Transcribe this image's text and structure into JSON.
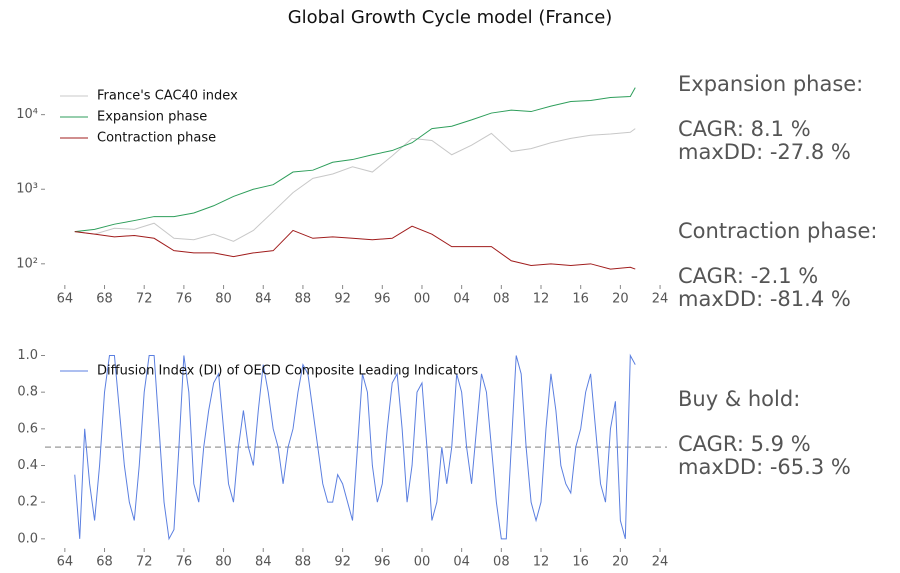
{
  "title": "Global Growth Cycle model (France)",
  "chart_data": [
    {
      "type": "line",
      "log_y": true,
      "legend": "upper left",
      "xlim": [
        1962,
        2024.7
      ],
      "ylim": [
        52,
        34000
      ],
      "xticks": [
        {
          "value": 1964,
          "label": "64"
        },
        {
          "value": 1968,
          "label": "68"
        },
        {
          "value": 1972,
          "label": "72"
        },
        {
          "value": 1976,
          "label": "76"
        },
        {
          "value": 1980,
          "label": "80"
        },
        {
          "value": 1984,
          "label": "84"
        },
        {
          "value": 1988,
          "label": "88"
        },
        {
          "value": 1992,
          "label": "92"
        },
        {
          "value": 1996,
          "label": "96"
        },
        {
          "value": 2000,
          "label": "00"
        },
        {
          "value": 2004,
          "label": "04"
        },
        {
          "value": 2008,
          "label": "08"
        },
        {
          "value": 2012,
          "label": "12"
        },
        {
          "value": 2016,
          "label": "16"
        },
        {
          "value": 2020,
          "label": "20"
        },
        {
          "value": 2024,
          "label": "24"
        }
      ],
      "yticks": [
        {
          "value": 100,
          "label": "10²"
        },
        {
          "value": 1000,
          "label": "10³"
        },
        {
          "value": 10000,
          "label": "10⁴"
        }
      ],
      "x": [
        1965,
        1967,
        1969,
        1971,
        1973,
        1975,
        1977,
        1979,
        1981,
        1983,
        1985,
        1987,
        1989,
        1991,
        1993,
        1995,
        1997,
        1999,
        2001,
        2003,
        2005,
        2007,
        2009,
        2011,
        2013,
        2015,
        2017,
        2019,
        2021,
        2021.5
      ],
      "series": [
        {
          "name": "France's CAC40 index",
          "color": "#c8c8c8",
          "width": 1,
          "values": [
            270,
            250,
            300,
            290,
            350,
            220,
            210,
            250,
            200,
            280,
            500,
            900,
            1400,
            1600,
            2000,
            1700,
            2800,
            4800,
            4500,
            2900,
            3900,
            5600,
            3200,
            3500,
            4200,
            4800,
            5300,
            5500,
            5800,
            6500
          ]
        },
        {
          "name": "Expansion phase",
          "color": "#2e9e5b",
          "width": 1,
          "values": [
            270,
            290,
            340,
            380,
            430,
            430,
            480,
            600,
            800,
            1000,
            1150,
            1700,
            1800,
            2300,
            2500,
            2900,
            3300,
            4200,
            6500,
            7000,
            8500,
            10500,
            11500,
            11000,
            13000,
            15000,
            15500,
            17000,
            17500,
            23000
          ]
        },
        {
          "name": "Contraction phase",
          "color": "#a01c1c",
          "width": 1,
          "values": [
            270,
            250,
            230,
            240,
            220,
            150,
            140,
            140,
            125,
            140,
            150,
            280,
            220,
            230,
            220,
            210,
            220,
            320,
            250,
            170,
            170,
            170,
            110,
            95,
            100,
            95,
            100,
            85,
            90,
            85
          ]
        }
      ],
      "annotations": [
        {
          "color": "#3cb371",
          "lines": [
            "Expansion phase:",
            "CAGR: 8.1 %",
            "maxDD: -27.8 %"
          ]
        },
        {
          "color": "#b22222",
          "lines": [
            "Contraction phase:",
            "CAGR: -2.1 %",
            "maxDD: -81.4 %"
          ]
        }
      ]
    },
    {
      "type": "line",
      "log_y": false,
      "legend": "upper left",
      "xlim": [
        1962,
        2024.7
      ],
      "ylim": [
        -0.05,
        1.03
      ],
      "hline": 0.5,
      "xticks": [
        {
          "value": 1964,
          "label": "64"
        },
        {
          "value": 1968,
          "label": "68"
        },
        {
          "value": 1972,
          "label": "72"
        },
        {
          "value": 1976,
          "label": "76"
        },
        {
          "value": 1980,
          "label": "80"
        },
        {
          "value": 1984,
          "label": "84"
        },
        {
          "value": 1988,
          "label": "88"
        },
        {
          "value": 1992,
          "label": "92"
        },
        {
          "value": 1996,
          "label": "96"
        },
        {
          "value": 2000,
          "label": "00"
        },
        {
          "value": 2004,
          "label": "04"
        },
        {
          "value": 2008,
          "label": "08"
        },
        {
          "value": 2012,
          "label": "12"
        },
        {
          "value": 2016,
          "label": "16"
        },
        {
          "value": 2020,
          "label": "20"
        },
        {
          "value": 2024,
          "label": "24"
        }
      ],
      "yticks": [
        {
          "value": 0,
          "label": "0.0"
        },
        0.2,
        0.4,
        0.6,
        0.8,
        {
          "value": 1,
          "label": "1.0"
        }
      ],
      "x": [
        1965,
        1965.5,
        1966,
        1966.5,
        1967,
        1967.5,
        1968,
        1968.5,
        1969,
        1969.5,
        1970,
        1970.5,
        1971,
        1971.5,
        1972,
        1972.5,
        1973,
        1973.5,
        1974,
        1974.5,
        1975,
        1975.5,
        1976,
        1976.5,
        1977,
        1977.5,
        1978,
        1978.5,
        1979,
        1979.5,
        1980,
        1980.5,
        1981,
        1981.5,
        1982,
        1982.5,
        1983,
        1983.5,
        1984,
        1984.5,
        1985,
        1985.5,
        1986,
        1986.5,
        1987,
        1987.5,
        1988,
        1988.5,
        1989,
        1989.5,
        1990,
        1990.5,
        1991,
        1991.5,
        1992,
        1992.5,
        1993,
        1993.5,
        1994,
        1994.5,
        1995,
        1995.5,
        1996,
        1996.5,
        1997,
        1997.5,
        1998,
        1998.5,
        1999,
        1999.5,
        2000,
        2000.5,
        2001,
        2001.5,
        2002,
        2002.5,
        2003,
        2003.5,
        2004,
        2004.5,
        2005,
        2005.5,
        2006,
        2006.5,
        2007,
        2007.5,
        2008,
        2008.5,
        2009,
        2009.5,
        2010,
        2010.5,
        2011,
        2011.5,
        2012,
        2012.5,
        2013,
        2013.5,
        2014,
        2014.5,
        2015,
        2015.5,
        2016,
        2016.5,
        2017,
        2017.5,
        2018,
        2018.5,
        2019,
        2019.5,
        2020,
        2020.5,
        2021,
        2021.5
      ],
      "series": [
        {
          "name": "Diffusion Index (DI) of OECD Composite Leading Indicators",
          "color": "#5b7fe0",
          "width": 1,
          "values": [
            0.35,
            0.0,
            0.6,
            0.3,
            0.1,
            0.4,
            0.8,
            1.0,
            1.0,
            0.7,
            0.4,
            0.2,
            0.1,
            0.4,
            0.8,
            1.0,
            1.0,
            0.6,
            0.2,
            0.0,
            0.05,
            0.5,
            1.0,
            0.8,
            0.3,
            0.2,
            0.5,
            0.7,
            0.85,
            0.9,
            0.6,
            0.3,
            0.2,
            0.5,
            0.7,
            0.5,
            0.4,
            0.7,
            0.95,
            0.8,
            0.6,
            0.5,
            0.3,
            0.5,
            0.6,
            0.8,
            0.95,
            0.9,
            0.7,
            0.5,
            0.3,
            0.2,
            0.2,
            0.35,
            0.3,
            0.2,
            0.1,
            0.5,
            0.9,
            0.8,
            0.4,
            0.2,
            0.3,
            0.6,
            0.85,
            0.9,
            0.6,
            0.2,
            0.4,
            0.8,
            0.85,
            0.5,
            0.1,
            0.2,
            0.5,
            0.3,
            0.5,
            0.9,
            0.8,
            0.5,
            0.3,
            0.6,
            0.9,
            0.8,
            0.5,
            0.2,
            0.0,
            0.0,
            0.5,
            1.0,
            0.9,
            0.5,
            0.2,
            0.1,
            0.2,
            0.6,
            0.9,
            0.7,
            0.4,
            0.3,
            0.25,
            0.5,
            0.6,
            0.8,
            0.9,
            0.6,
            0.3,
            0.2,
            0.6,
            0.75,
            0.1,
            0.0,
            1.0,
            0.95
          ]
        }
      ],
      "annotations": [
        {
          "color": "#888888",
          "lines": [
            "Buy & hold:",
            "CAGR: 5.9 %",
            "maxDD: -65.3 %"
          ]
        }
      ]
    }
  ]
}
